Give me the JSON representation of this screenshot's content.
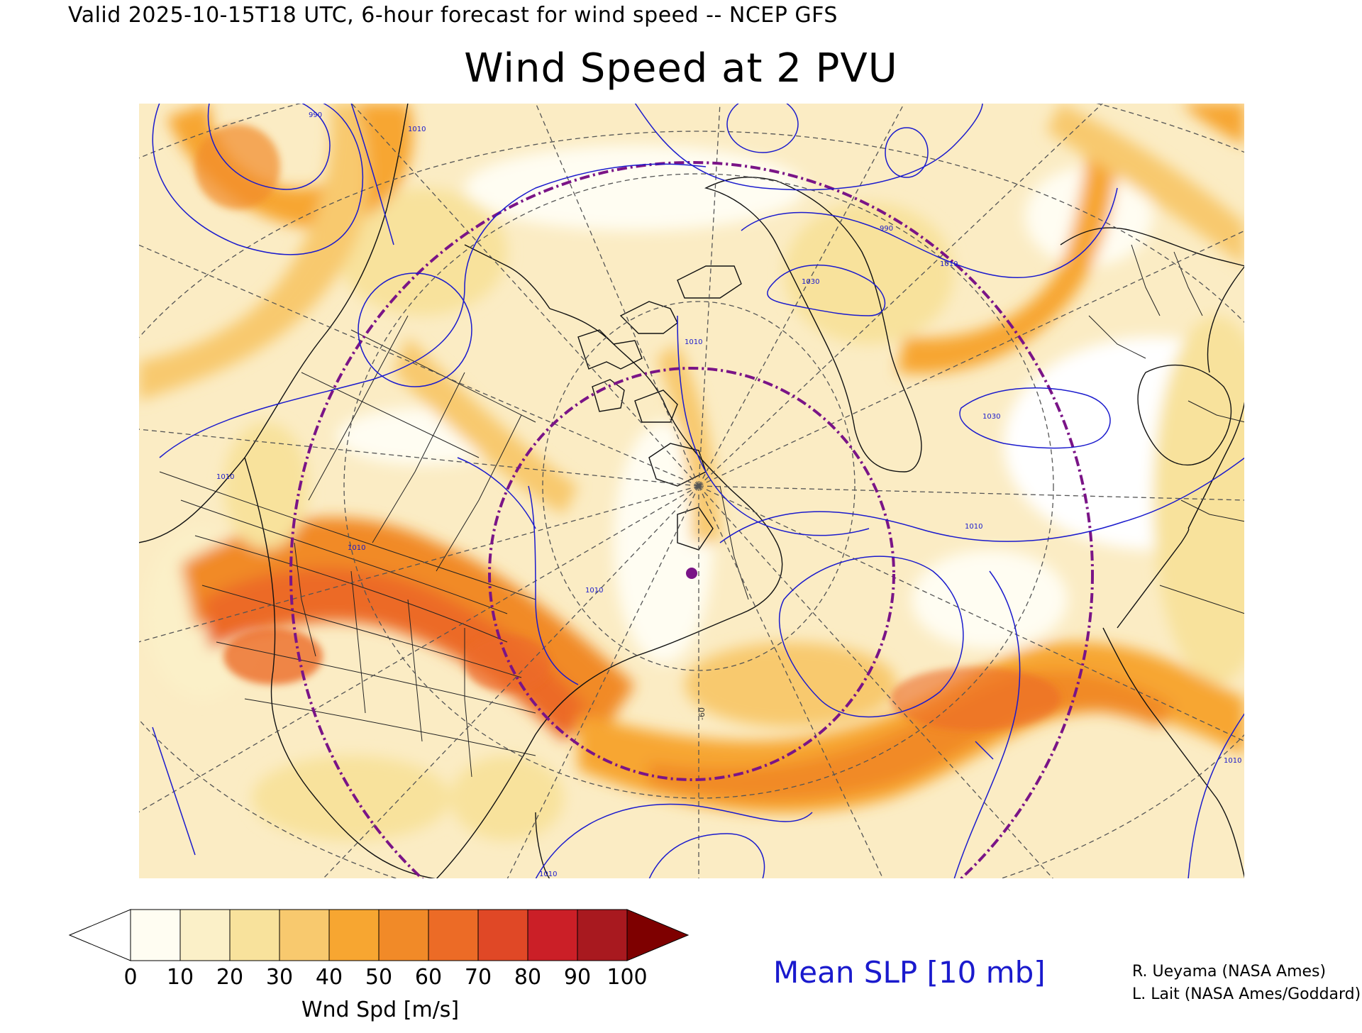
{
  "header": {
    "valid_line": "Valid 2025-10-15T18 UTC, 6-hour forecast for wind speed -- NCEP GFS",
    "title": "Wind Speed at 2 PVU"
  },
  "map": {
    "projection": "polar stereographic",
    "field": "wind speed",
    "overlay": "mean sea level pressure isobars",
    "isobar_labels": [
      "990",
      "1010",
      "990",
      "1010",
      "1030",
      "1010",
      "1030",
      "1010",
      "1010",
      "1010",
      "1010",
      "1010",
      "1010"
    ],
    "meridian_label": "-60",
    "marker": "station dot"
  },
  "colorbar": {
    "ticks": [
      "0",
      "10",
      "20",
      "30",
      "40",
      "50",
      "60",
      "70",
      "80",
      "90",
      "100"
    ],
    "colors": [
      "#ffffff",
      "#fffdf2",
      "#fbf0c8",
      "#f8e29c",
      "#f8c96e",
      "#f7a631",
      "#f18a28",
      "#ec6b26",
      "#e04826",
      "#cb1f27",
      "#a8191f",
      "#7e0000"
    ],
    "label": "Wnd Spd [m/s]"
  },
  "legend": {
    "slp": "Mean SLP [10 mb]"
  },
  "credits": [
    "R. Ueyama (NASA Ames)",
    "L. Lait (NASA Ames/Goddard)"
  ]
}
